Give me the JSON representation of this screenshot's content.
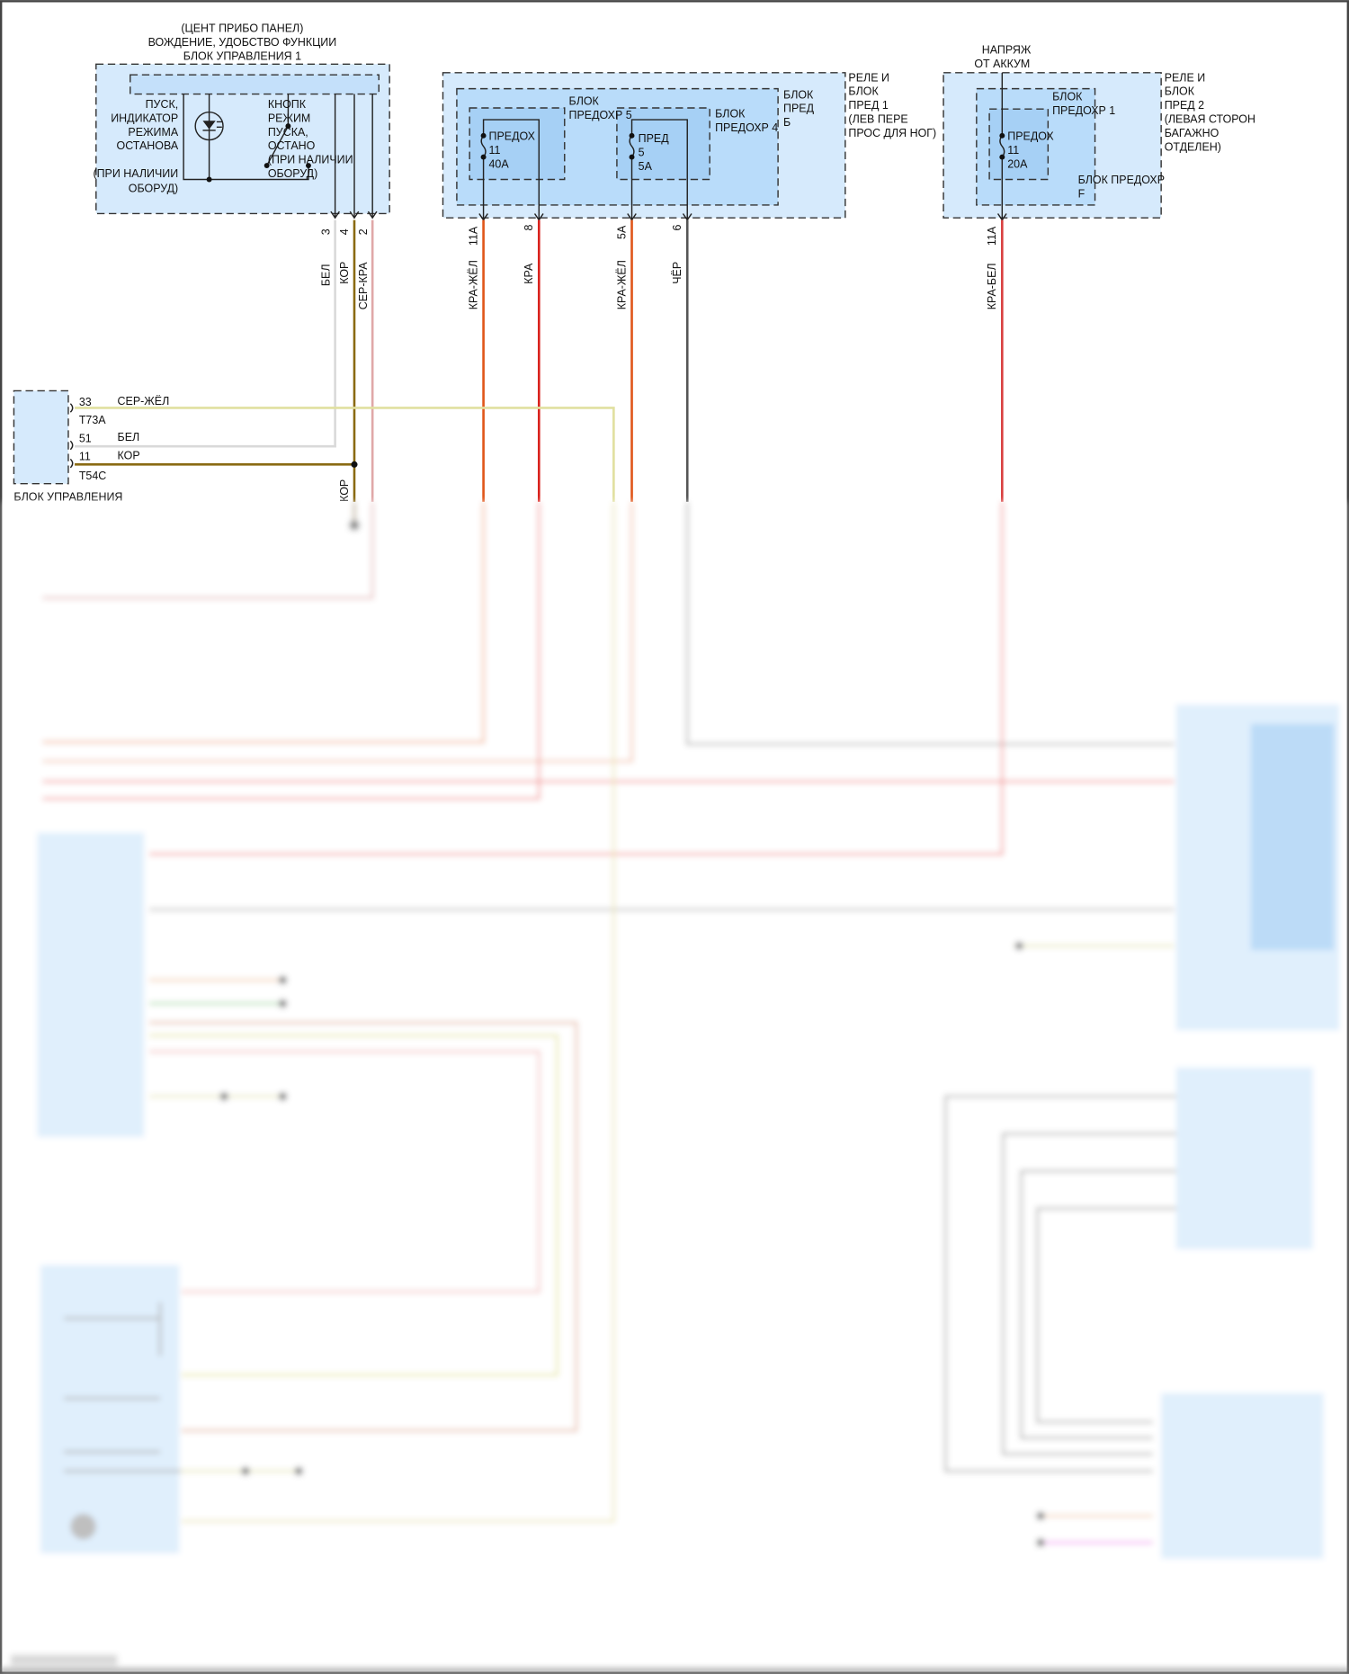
{
  "colors": {
    "box_light": "#d6eafc",
    "box_mid": "#b9dcfa",
    "box_dark": "#a6d0f5",
    "wire_white": "#d9d9d9",
    "wire_brown": "#8a6a12",
    "wire_grey_red": "#e0a8a8",
    "wire_red_yellow": "#e0561a",
    "wire_red": "#d9231e",
    "wire_black": "#555555",
    "wire_red_white": "#d94040",
    "wire_grey_yellow": "#e1e0a0"
  },
  "module1": {
    "title": [
      "(ЦЕНТ ПРИБО ПАНЕЛ)",
      "ВОЖДЕНИЕ, УДОБСТВО ФУНКЦИИ",
      "БЛОК УПРАВЛЕНИЯ 1"
    ],
    "indicator_label": [
      "ПУСК,",
      "ИНДИКАТОР",
      "РЕЖИМА",
      "ОСТАНОВА"
    ],
    "indicator_note": [
      "(ПРИ НАЛИЧИИ",
      "ОБОРУД)"
    ],
    "button_label": [
      "КНОПК",
      "РЕЖИМ",
      "ПУСКА,",
      "ОСТАНО",
      "(ПРИ НАЛИЧИИ",
      "ОБОРУД)"
    ],
    "pins": [
      "3",
      "4",
      "2"
    ],
    "wires": [
      "БЕЛ",
      "КОР",
      "СЕР-КРА"
    ]
  },
  "relay1": {
    "label": [
      "РЕЛЕ И",
      "БЛОК",
      "ПРЕД 1",
      "(ЛЕВ ПЕРЕ",
      "ПРОС ДЛЯ НОГ)"
    ],
    "block_label": [
      "БЛОК",
      "ПРЕД",
      "Б"
    ],
    "fuseblock5": [
      "БЛОК",
      "ПРЕДОХР 5"
    ],
    "fuseblock4": [
      "БЛОК",
      "ПРЕДОХР 4"
    ],
    "fuse11": [
      "ПРЕДОХ",
      "11",
      "40A"
    ],
    "fuse5": [
      "ПРЕД",
      "5",
      "5A"
    ],
    "pins": [
      "11A",
      "8",
      "5A",
      "6"
    ],
    "wires": [
      "КРА-ЖЁЛ",
      "КРА",
      "КРА-ЖЁЛ",
      "ЧЁР"
    ]
  },
  "relay2": {
    "supply": [
      "НАПРЯЖ",
      "ОТ АККУМ"
    ],
    "label": [
      "РЕЛЕ И",
      "БЛОК",
      "ПРЕД 2",
      "(ЛЕВАЯ СТОРОН",
      "БАГАЖНО",
      "ОТДЕЛЕН)"
    ],
    "block_label": [
      "БЛОК ПРЕДОХР",
      "F"
    ],
    "fuseblock1": [
      "БЛОК",
      "ПРЕДОХР 1"
    ],
    "fuse11": [
      "ПРЕДОХ",
      "11",
      "20A"
    ],
    "pin": "11A",
    "wire": "КРА-БЕЛ"
  },
  "control_unit": {
    "label": "БЛОК УПРАВЛЕНИЯ",
    "rows": [
      {
        "pin": "33",
        "wire": "СЕР-ЖЁЛ",
        "connector": "T73A"
      },
      {
        "pin": "51",
        "wire": "БЕЛ",
        "connector": ""
      },
      {
        "pin": "11",
        "wire": "КОР",
        "connector": "T54C"
      }
    ],
    "vertical_wire": "КОР"
  }
}
